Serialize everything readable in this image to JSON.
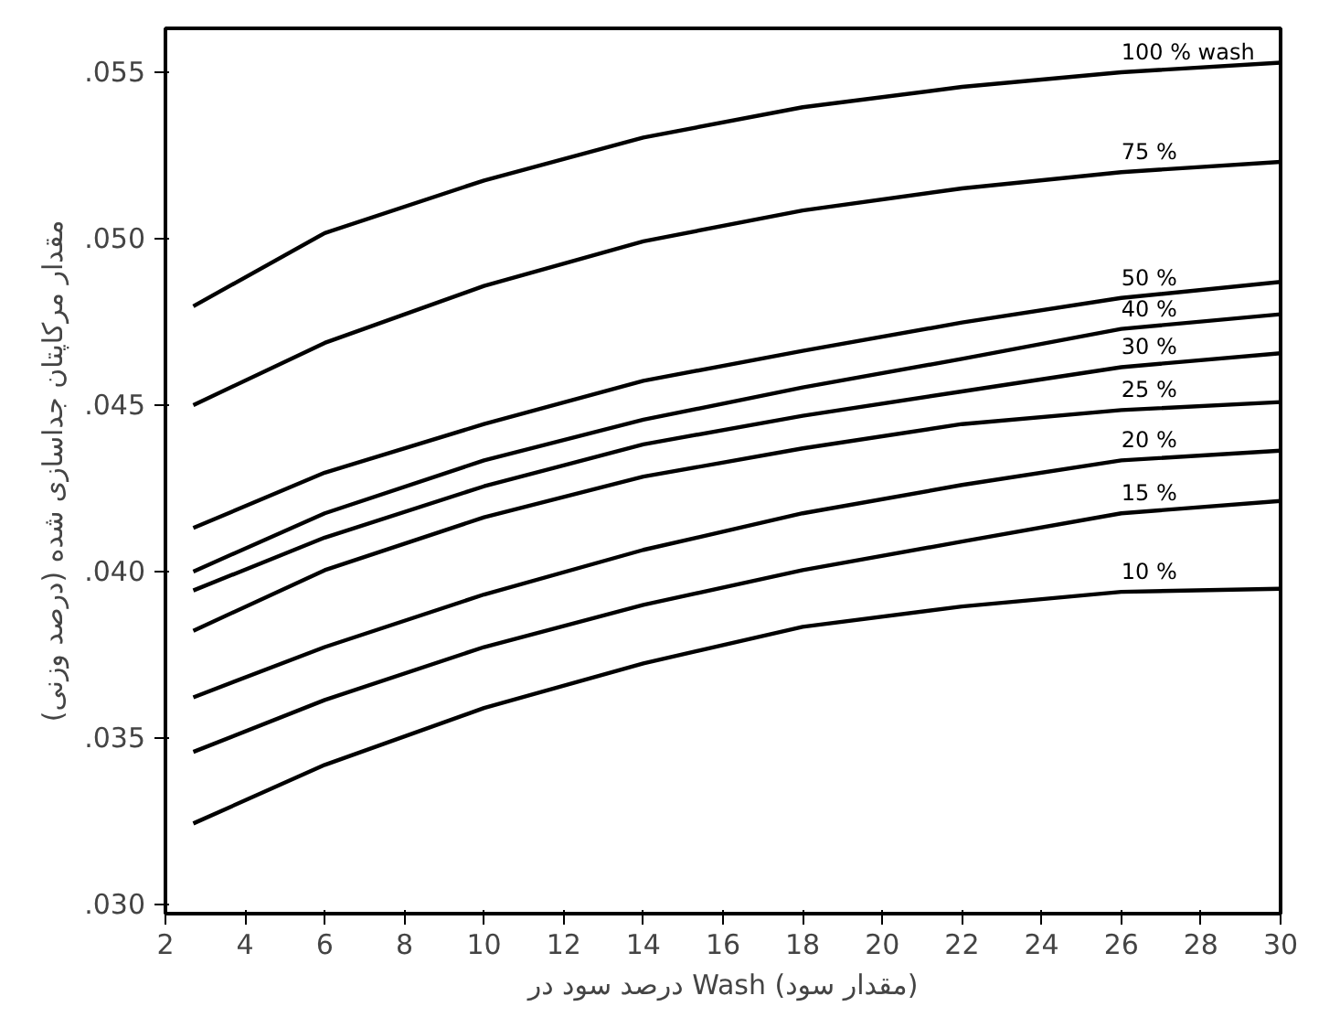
{
  "chart_data": {
    "type": "line",
    "xlabel": "درصد سود در Wash (مقدار سود)",
    "ylabel": "مقدار مرکاپتان جداسازی شده (درصد وزنی)",
    "x": [
      2.7,
      6,
      10,
      14,
      18,
      22,
      26,
      30
    ],
    "series": [
      {
        "name": "100 % wash",
        "color": "#000000",
        "values": [
          0.04795,
          0.05015,
          0.05173,
          0.05302,
          0.05393,
          0.05454,
          0.05498,
          0.05527
        ]
      },
      {
        "name": "75 %",
        "color": "#000000",
        "values": [
          0.04498,
          0.04685,
          0.04856,
          0.0499,
          0.05083,
          0.05149,
          0.05198,
          0.05229
        ]
      },
      {
        "name": "50 %",
        "color": "#000000",
        "values": [
          0.04129,
          0.04295,
          0.04441,
          0.04571,
          0.04661,
          0.04746,
          0.0482,
          0.04868
        ]
      },
      {
        "name": "40 %",
        "color": "#000000",
        "values": [
          0.03998,
          0.04173,
          0.04332,
          0.04454,
          0.04551,
          0.04637,
          0.04727,
          0.04771
        ]
      },
      {
        "name": "30 %",
        "color": "#000000",
        "values": [
          0.03941,
          0.041,
          0.04254,
          0.0438,
          0.04466,
          0.04539,
          0.04612,
          0.04654
        ]
      },
      {
        "name": "25 %",
        "color": "#000000",
        "values": [
          0.0382,
          0.04002,
          0.04161,
          0.04283,
          0.04368,
          0.04441,
          0.04483,
          0.04507
        ]
      },
      {
        "name": "20 %",
        "color": "#000000",
        "values": [
          0.0362,
          0.03771,
          0.03929,
          0.04063,
          0.04173,
          0.04258,
          0.04332,
          0.04361
        ]
      },
      {
        "name": "15 %",
        "color": "#000000",
        "values": [
          0.03456,
          0.03612,
          0.03771,
          0.03898,
          0.04002,
          0.04088,
          0.04173,
          0.0421
        ]
      },
      {
        "name": "10 %",
        "color": "#000000",
        "values": [
          0.03241,
          0.03417,
          0.03588,
          0.03722,
          0.03832,
          0.03893,
          0.03937,
          0.03946
        ]
      }
    ],
    "xlim": [
      2,
      30
    ],
    "xticks": [
      2,
      4,
      6,
      8,
      10,
      12,
      14,
      16,
      18,
      20,
      22,
      24,
      26,
      28,
      30
    ],
    "ylim": [
      0.0297,
      0.0563
    ],
    "yticks": [
      {
        "value": 0.03,
        "label": ".030"
      },
      {
        "value": 0.035,
        "label": ".035"
      },
      {
        "value": 0.04,
        "label": ".040"
      },
      {
        "value": 0.045,
        "label": ".045"
      },
      {
        "value": 0.05,
        "label": ".050"
      },
      {
        "value": 0.055,
        "label": ".055"
      }
    ],
    "grid": false,
    "marker": "none",
    "line_style": "solid"
  }
}
